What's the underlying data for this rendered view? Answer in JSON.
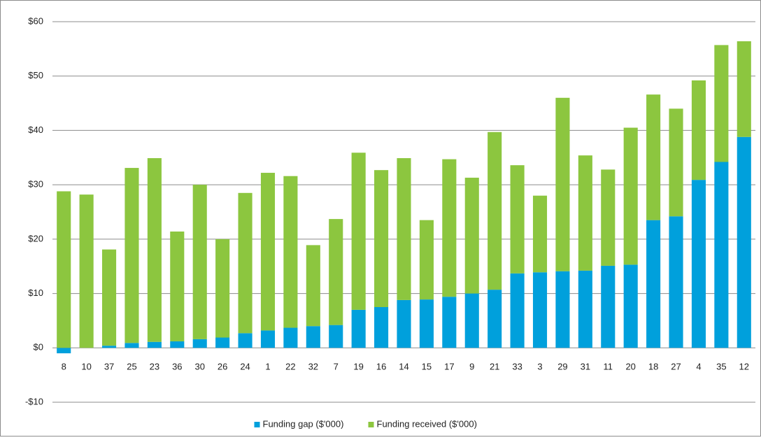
{
  "chart_data": {
    "type": "bar",
    "stacked": true,
    "categories": [
      "8",
      "10",
      "37",
      "25",
      "23",
      "36",
      "30",
      "26",
      "24",
      "1",
      "22",
      "32",
      "7",
      "19",
      "16",
      "14",
      "15",
      "17",
      "9",
      "21",
      "33",
      "3",
      "29",
      "31",
      "11",
      "20",
      "18",
      "27",
      "4",
      "35",
      "12"
    ],
    "series": [
      {
        "name": "Funding gap ($'000)",
        "color": "#00a0dc",
        "values": [
          -1.0,
          0,
          0.4,
          0.9,
          1.1,
          1.2,
          1.6,
          1.9,
          2.7,
          3.2,
          3.7,
          4.0,
          4.2,
          7.0,
          7.5,
          8.8,
          8.9,
          9.4,
          10.0,
          10.7,
          13.7,
          13.9,
          14.1,
          14.2,
          15.1,
          15.3,
          23.5,
          24.2,
          30.9,
          34.2,
          38.8
        ]
      },
      {
        "name": "Funding received ($'000)",
        "color": "#8cc63f",
        "values": [
          28.8,
          28.2,
          17.7,
          32.2,
          33.8,
          20.2,
          28.4,
          18.1,
          25.8,
          29.0,
          27.9,
          14.9,
          19.5,
          28.9,
          25.2,
          26.1,
          14.6,
          25.3,
          21.3,
          29.0,
          19.9,
          14.1,
          31.9,
          21.2,
          17.7,
          25.2,
          23.1,
          19.8,
          18.3,
          21.5,
          17.6
        ]
      }
    ],
    "ylim": [
      -10,
      60
    ],
    "yticks": [
      {
        "value": -10,
        "label": "-$10"
      },
      {
        "value": 0,
        "label": "$0"
      },
      {
        "value": 10,
        "label": "$10"
      },
      {
        "value": 20,
        "label": "$20"
      },
      {
        "value": 30,
        "label": "$30"
      },
      {
        "value": 40,
        "label": "$40"
      },
      {
        "value": 50,
        "label": "$50"
      },
      {
        "value": 60,
        "label": "$60"
      }
    ],
    "grid": true,
    "legend": "bottom"
  }
}
